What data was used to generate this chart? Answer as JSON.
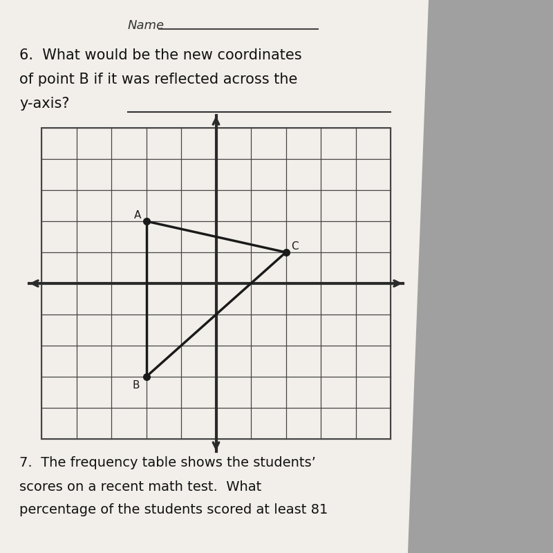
{
  "title_line1": "6.  What would be the new coordinates",
  "title_line2": "of point B if it was reflected across the",
  "title_line3": "y-axis?",
  "name_label": "Name",
  "bg_paper": "#f2efea",
  "bg_gray": "#a0a0a0",
  "grid_color": "#444444",
  "axis_color": "#2a2a2a",
  "point_color": "#1a1a1a",
  "line_color": "#1a1a1a",
  "point_size": 7,
  "x_axis_range": [
    -5,
    5
  ],
  "y_axis_range": [
    -5,
    5
  ],
  "point_A": [
    -2,
    2
  ],
  "point_B": [
    -2,
    -3
  ],
  "point_C": [
    2,
    1
  ],
  "label_fontsize": 11,
  "question_fontsize": 15,
  "q7_line1": "7.  The frequency table shows the students’",
  "q7_line2": "scores on a recent math test.  What",
  "q7_line3": "percentage of the students scored at least 81"
}
